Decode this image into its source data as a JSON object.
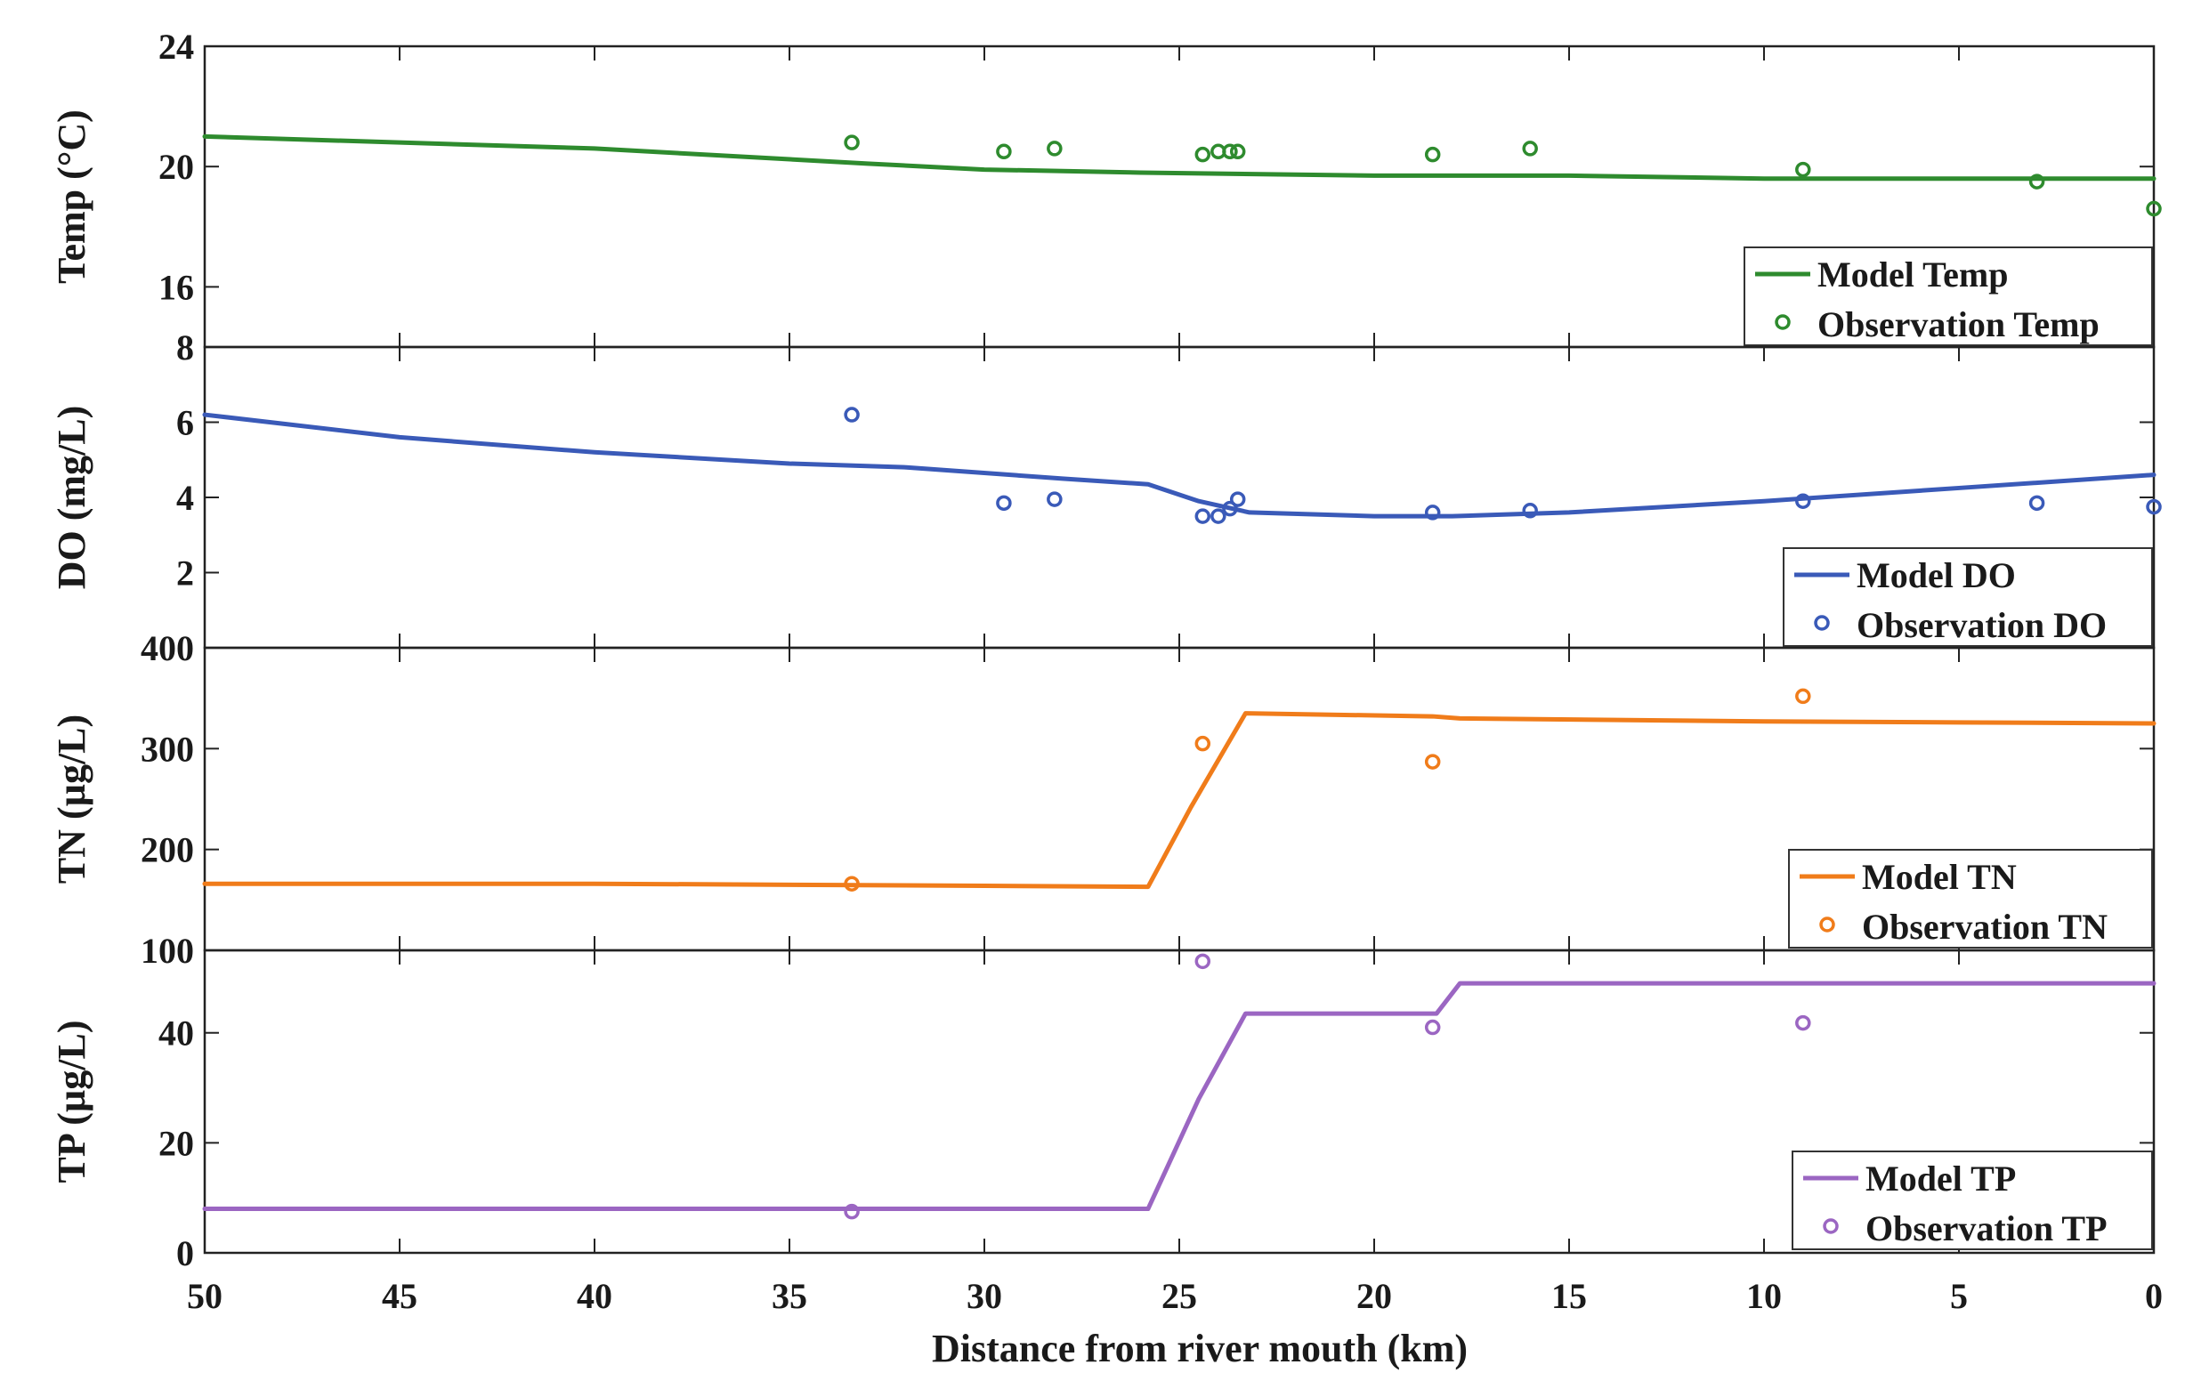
{
  "chart_data": {
    "type": "line",
    "xlabel": "Distance from river mouth (km)",
    "xlim": [
      50,
      0
    ],
    "xticks": [
      50,
      45,
      40,
      35,
      30,
      25,
      20,
      15,
      10,
      5,
      0
    ],
    "xtick_labels": [
      "50",
      "45",
      "40",
      "35",
      "30",
      "25",
      "20",
      "15",
      "10",
      "5",
      "0"
    ],
    "panels": [
      {
        "id": "temp",
        "ylabel": "Temp (°C)",
        "ylim": [
          14,
          24
        ],
        "yticks": [
          16,
          20,
          24
        ],
        "ytick_labels": [
          "16",
          "20",
          "24"
        ],
        "top_label": "24",
        "color": "#2e8b2e",
        "legend": [
          "Model Temp",
          "Observation Temp"
        ],
        "model": {
          "x": [
            50,
            40,
            33,
            30,
            26,
            20,
            15,
            10,
            5,
            0
          ],
          "y": [
            21.0,
            20.6,
            20.1,
            19.9,
            19.8,
            19.7,
            19.7,
            19.6,
            19.6,
            19.6
          ]
        },
        "observations": {
          "x": [
            33.4,
            29.5,
            28.2,
            24.4,
            24.0,
            23.7,
            23.5,
            18.5,
            16.0,
            9.0,
            3.0,
            0
          ],
          "y": [
            20.8,
            20.5,
            20.6,
            20.4,
            20.5,
            20.5,
            20.5,
            20.4,
            20.6,
            19.9,
            19.5,
            18.6
          ]
        }
      },
      {
        "id": "do",
        "ylabel": "DO (mg/L)",
        "ylim": [
          0,
          8
        ],
        "yticks": [
          2,
          4,
          6
        ],
        "ytick_labels": [
          "2",
          "4",
          "6"
        ],
        "top_label": "8",
        "color": "#3a5ab8",
        "legend": [
          "Model DO",
          "Observation DO"
        ],
        "model": {
          "x": [
            50,
            45,
            40,
            35,
            32,
            28,
            25.8,
            24.5,
            23.2,
            20,
            18,
            15,
            10,
            5,
            0
          ],
          "y": [
            6.2,
            5.6,
            5.2,
            4.9,
            4.8,
            4.5,
            4.35,
            3.9,
            3.6,
            3.5,
            3.5,
            3.6,
            3.9,
            4.25,
            4.6
          ]
        },
        "observations": {
          "x": [
            33.4,
            29.5,
            28.2,
            24.4,
            24.0,
            23.7,
            23.5,
            18.5,
            16.0,
            9.0,
            3.0,
            0
          ],
          "y": [
            6.2,
            3.85,
            3.95,
            3.5,
            3.5,
            3.7,
            3.95,
            3.6,
            3.65,
            3.9,
            3.85,
            3.75
          ]
        }
      },
      {
        "id": "tn",
        "ylabel": "TN (µg/L)",
        "ylim": [
          100,
          400
        ],
        "yticks": [
          200,
          300
        ],
        "ytick_labels": [
          "200",
          "300"
        ],
        "top_label": "400",
        "color": "#f07c1a",
        "legend": [
          "Model TN",
          "Observation TN"
        ],
        "model": {
          "x": [
            50,
            40,
            30,
            25.8,
            24.7,
            23.3,
            18.5,
            17.8,
            10,
            5,
            0
          ],
          "y": [
            166,
            166,
            164,
            163,
            242,
            335,
            332,
            330,
            327,
            326,
            325
          ]
        },
        "observations": {
          "x": [
            33.4,
            24.4,
            18.5,
            9.0
          ],
          "y": [
            166,
            305,
            287,
            352
          ]
        }
      },
      {
        "id": "tp",
        "ylabel": "TP (µg/L)",
        "ylim": [
          0,
          55
        ],
        "yticks": [
          0,
          20,
          40
        ],
        "ytick_labels": [
          "0",
          "20",
          "40"
        ],
        "top_label": "100",
        "color": "#9b66c2",
        "legend": [
          "Model TP",
          "Observation TP"
        ],
        "model": {
          "x": [
            50,
            40,
            30,
            25.8,
            24.5,
            23.3,
            18.4,
            17.8,
            10,
            5,
            0
          ],
          "y": [
            8,
            8,
            8,
            8,
            28,
            43.5,
            43.5,
            49,
            49,
            49,
            49
          ]
        },
        "observations": {
          "x": [
            33.4,
            24.4,
            18.5,
            9.0
          ],
          "y": [
            7.5,
            53,
            41,
            41.8
          ]
        }
      }
    ]
  }
}
